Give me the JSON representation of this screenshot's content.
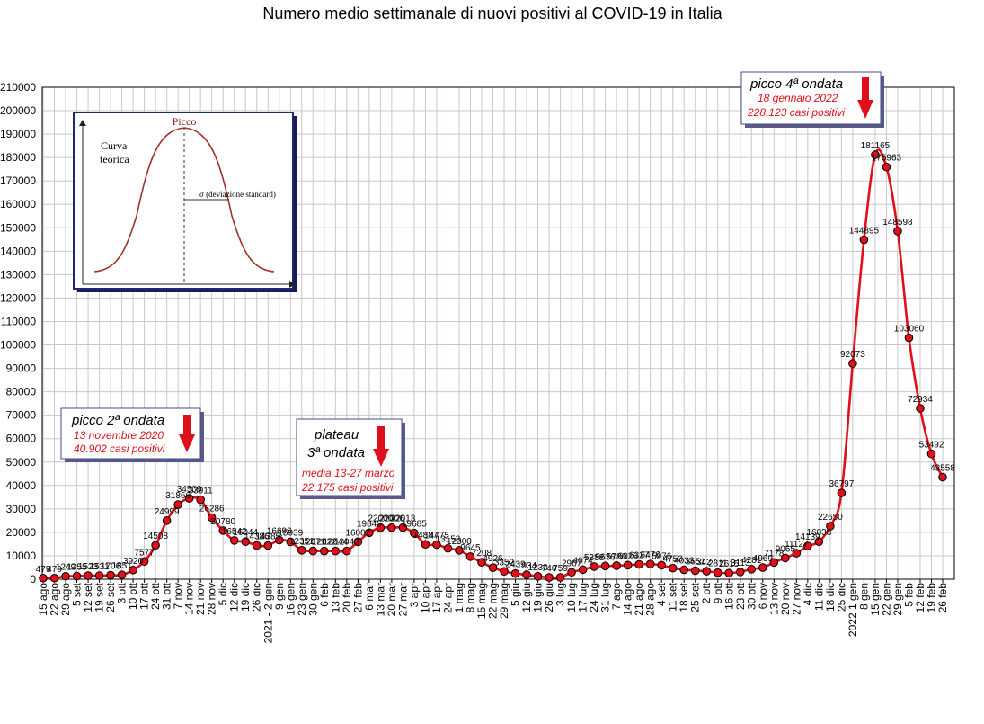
{
  "chart_data": {
    "type": "line",
    "title": "Numero medio settimanale di nuovi positivi al COVID-19 in Italia",
    "ylim": [
      0,
      210000
    ],
    "ytick_step": 10000,
    "grid": true,
    "line_color": "#e0101a",
    "marker_color": "#e0101a",
    "x_labels": [
      "15 ago",
      "22 ago",
      "29 ago",
      "5 set",
      "12 set",
      "19 set",
      "26 set",
      "3 ott",
      "10 ott",
      "17 ott",
      "24 ott",
      "31 ott",
      "7 nov",
      "14 nov",
      "21 nov",
      "28 nov",
      "5 dic",
      "12 dic",
      "19 dic",
      "26 dic",
      "2021 - 2 gen",
      "9 gen",
      "16 gen",
      "23 gen",
      "30 gen",
      "6 feb",
      "13 feb",
      "20 feb",
      "27 feb",
      "6 mar",
      "13 mar",
      "20 mar",
      "27 mar",
      "3 apr",
      "10 apr",
      "17 apr",
      "24 apr",
      "1 mag",
      "8 mag",
      "15 mag",
      "22 mag",
      "29 mag",
      "5 giu",
      "12 giu",
      "19 giu",
      "26 giu",
      "3 lug",
      "10 lug",
      "17 lug",
      "24 lug",
      "31 lug",
      "7 ago",
      "14 ago",
      "21 ago",
      "28 ago",
      "4 set",
      "11 set",
      "18 set",
      "25 set",
      "2 ott",
      "9 ott",
      "16 ott",
      "23 ott",
      "30 ott",
      "6 nov",
      "13 nov",
      "20 nov",
      "27 nov",
      "4 dic",
      "11 dic",
      "18 dic",
      "25 dic",
      "2022 1 gen",
      "8 gen",
      "15 gen",
      "22 gen",
      "29 gen",
      "5 feb",
      "12 feb",
      "19 feb",
      "26 feb"
    ],
    "values": [
      479,
      479,
      1249,
      1355,
      1523,
      1531,
      1706,
      1851,
      3920,
      7577,
      14508,
      24999,
      31866,
      34509,
      33911,
      26286,
      20780,
      16542,
      16044,
      14386,
      14385,
      16696,
      15939,
      12351,
      12071,
      12022,
      12044,
      12043,
      16002,
      19845,
      22000,
      22006,
      22013,
      19685,
      14887,
      14775,
      13153,
      12300,
      9645,
      7208,
      4926,
      3352,
      2439,
      1934,
      1230,
      740,
      759,
      2967,
      4074,
      5388,
      5636,
      5780,
      6026,
      6327,
      6476,
      5976,
      4753,
      4033,
      3651,
      3427,
      2811,
      2615,
      3113,
      4281,
      4969,
      7178,
      9065,
      11127,
      14139,
      16038,
      22650,
      36797,
      92073,
      144895,
      181165,
      175963,
      148598,
      103060,
      72934,
      53492,
      43558
    ],
    "data_labels": [
      "479",
      "479",
      "1249",
      "1355",
      "1523",
      "1531",
      "1706",
      "1851",
      "3920",
      "7577",
      "14508",
      "24999",
      "31866",
      "34509",
      "33911",
      "26286",
      "20780",
      "16542",
      "16044",
      "14386",
      "14385",
      "16696",
      "15939",
      "12351",
      "12071",
      "12022",
      "12044",
      "12043",
      "16002",
      "19845",
      "22000",
      "22006",
      "22013",
      "19685",
      "14887",
      "14775",
      "13153",
      "12300",
      "9645",
      "7208",
      "4926",
      "3352",
      "2439",
      "1934",
      "1230",
      "740",
      "759",
      "2967",
      "4074",
      "5388",
      "5636",
      "5780",
      "6026",
      "6327",
      "6476",
      "5976",
      "4753",
      "4033",
      "3651",
      "3427",
      "2811",
      "2615",
      "3113",
      "4281",
      "4969",
      "7178",
      "9065",
      "11127",
      "14139",
      "16038",
      "22650",
      "36797",
      "92073",
      "144895",
      "181165",
      "175963",
      "148598",
      "103060",
      "72934",
      "53492",
      "43558"
    ],
    "annotations": [
      {
        "title": "picco 2ª ondata",
        "line1": "13 novembre 2020",
        "line2": "40.902 casi positivi"
      },
      {
        "title": "plateau 3ª ondata",
        "title_line1": "plateau",
        "title_line2": "3ª ondata",
        "line1": "media 13-27 marzo",
        "line2": "22.175 casi positivi"
      },
      {
        "title": "picco 4ª ondata",
        "line1": "18 gennaio 2022",
        "line2": "228.123 casi positivi"
      }
    ],
    "inset": {
      "label_left_1": "Curva",
      "label_left_2": "teorica",
      "label_top": "Picco",
      "label_sigma": "σ  (deviazione standard)"
    }
  }
}
